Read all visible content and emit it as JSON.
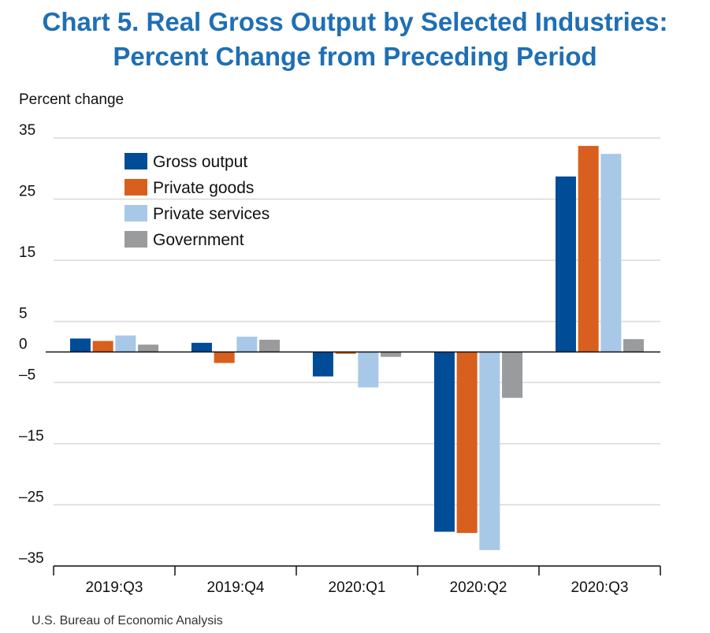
{
  "title_line1": "Chart 5. Real Gross Output by Selected Industries:",
  "title_line2": "Percent Change from Preceding Period",
  "ylabel": "Percent change",
  "source": "U.S. Bureau of Economic Analysis",
  "chart_data": {
    "type": "bar",
    "categories": [
      "2019:Q3",
      "2019:Q4",
      "2020:Q1",
      "2020:Q2",
      "2020:Q3"
    ],
    "series": [
      {
        "name": "Gross output",
        "color": "#004c97",
        "values": [
          2.2,
          1.5,
          -4.0,
          -29.4,
          28.7
        ]
      },
      {
        "name": "Private goods",
        "color": "#d85f1d",
        "values": [
          1.8,
          -1.8,
          -0.3,
          -29.6,
          33.7
        ]
      },
      {
        "name": "Private services",
        "color": "#a8c8e8",
        "values": [
          2.7,
          2.5,
          -5.8,
          -32.4,
          32.4
        ]
      },
      {
        "name": "Government",
        "color": "#9a9b9c",
        "values": [
          1.2,
          2.0,
          -0.8,
          -7.5,
          2.1
        ]
      }
    ],
    "yticks": [
      35,
      25,
      15,
      5,
      0,
      -5,
      -15,
      -25,
      -35
    ],
    "ytick_labels": [
      "35",
      "25",
      "15",
      "5",
      "0",
      "–5",
      "–15",
      "–25",
      "–35"
    ],
    "ylim": [
      -35,
      35
    ],
    "grid": true,
    "legend": "top-left"
  }
}
